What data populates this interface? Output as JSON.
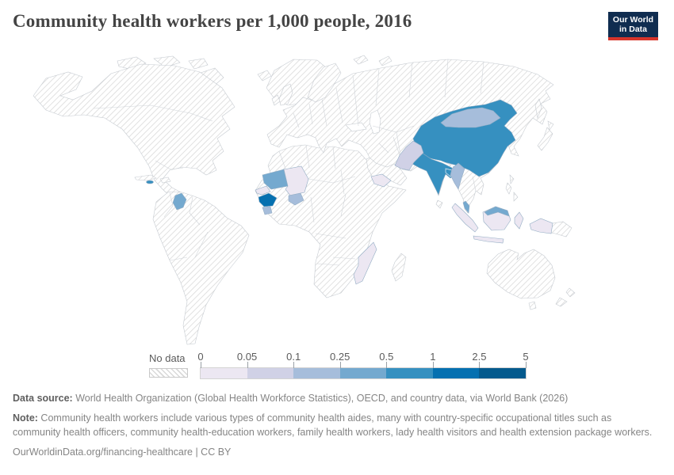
{
  "header": {
    "title": "Community health workers per 1,000 people, 2016",
    "logo_line1": "Our World",
    "logo_line2": "in Data",
    "logo_colors": {
      "navy": "#102d50",
      "red": "#d7352b"
    }
  },
  "legend": {
    "no_data_label": "No data",
    "ticks": [
      "0",
      "0.05",
      "0.1",
      "0.25",
      "0.5",
      "1",
      "2.5",
      "5"
    ],
    "bin_colors": [
      "#ece7f2",
      "#d0d1e6",
      "#a6bddb",
      "#74a9cf",
      "#3690c0",
      "#0570b0",
      "#045a8d"
    ]
  },
  "map_countries": {
    "china": "#3690c0",
    "india": "#3690c0",
    "bangladesh": "#3690c0",
    "bhutan": "#3690c0",
    "jamaica": "#3690c0",
    "guinea": "#0570b0",
    "mongolia": "#a6bddb",
    "myanmar": "#a6bddb",
    "burkina-faso": "#a6bddb",
    "sierra-leone": "#a6bddb",
    "mauritania": "#74a9cf",
    "guyana": "#74a9cf",
    "malaysia": "#74a9cf",
    "pakistan": "#d0d1e6",
    "mali": "#ece7f2",
    "senegal": "#ece7f2",
    "indonesia": "#ece7f2",
    "mozambique": "#ece7f2",
    "yemen": "#ece7f2"
  },
  "footer": {
    "data_source_label": "Data source:",
    "data_source_text": " World Health Organization (Global Health Workforce Statistics), OECD, and country data, via World Bank (2026)",
    "note_label": "Note:",
    "note_text": " Community health workers include various types of community health aides, many with country-specific occupational titles such as community health officers, community health-education workers, family health workers, lady health visitors and health extension package workers.",
    "citation": "OurWorldinData.org/financing-healthcare | CC BY"
  },
  "chart_data": {
    "type": "choropleth_map",
    "title": "Community health workers per 1,000 people, 2016",
    "year": 2016,
    "unit": "community health workers per 1,000 people",
    "color_scale": {
      "bin_edges": [
        0,
        0.05,
        0.1,
        0.25,
        0.5,
        1,
        2.5,
        5
      ],
      "bin_colors": [
        "#ece7f2",
        "#d0d1e6",
        "#a6bddb",
        "#74a9cf",
        "#3690c0",
        "#0570b0",
        "#045a8d"
      ],
      "no_data_style": "white with diagonal gray hatching"
    },
    "countries_by_bin": {
      "0-0.05": [
        "Mali",
        "Senegal",
        "Indonesia",
        "Mozambique",
        "Yemen"
      ],
      "0.05-0.1": [
        "Pakistan"
      ],
      "0.1-0.25": [
        "Mongolia",
        "Myanmar",
        "Burkina Faso",
        "Sierra Leone"
      ],
      "0.25-0.5": [
        "Mauritania",
        "Guyana",
        "Malaysia"
      ],
      "0.5-1": [
        "China",
        "India",
        "Bangladesh",
        "Bhutan",
        "Jamaica"
      ],
      "1-2.5": [
        "Guinea"
      ],
      "no_data": "All other countries (hatched)"
    },
    "legend_position": "bottom",
    "projection": "equirectangular world map"
  }
}
